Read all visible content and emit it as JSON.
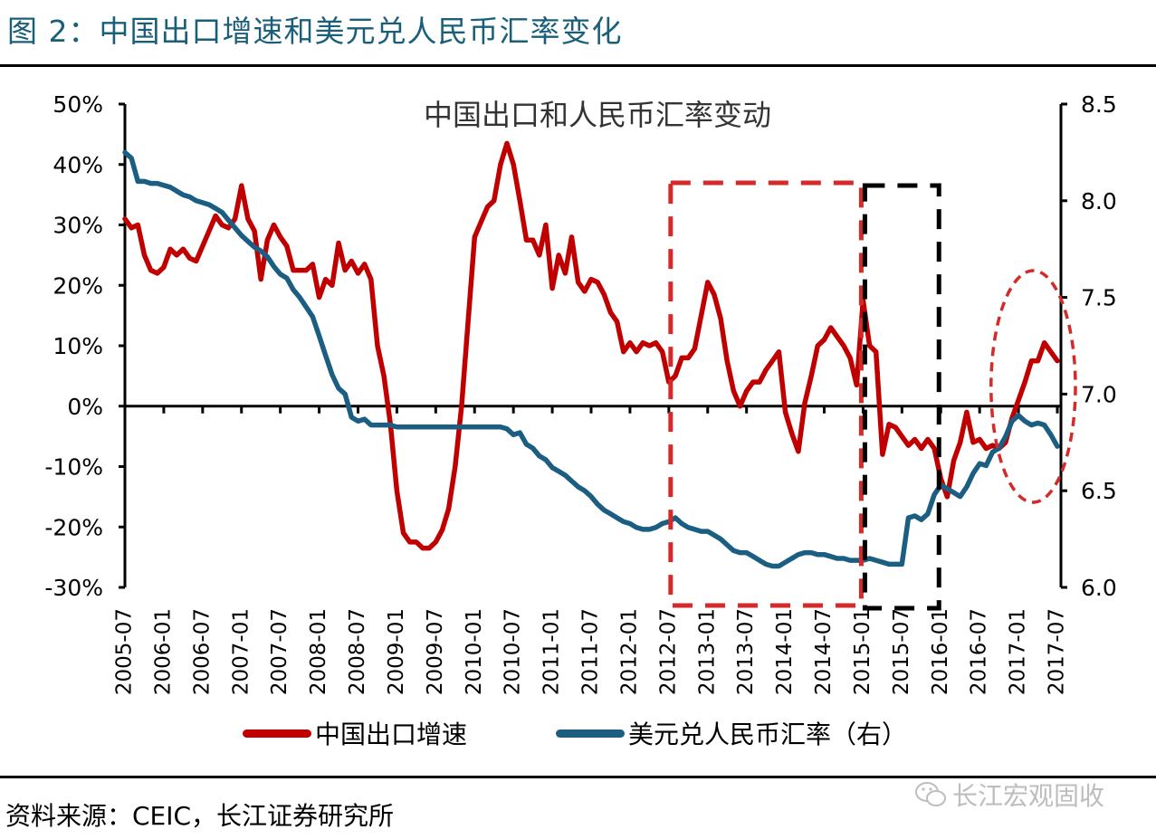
{
  "figure_title": "图 2：中国出口增速和美元兑人民币汇率变化",
  "source": "资料来源：CEIC，长江证券研究所",
  "watermark": "长江宏观固收",
  "watermark_icon": "wechat-icon",
  "colors": {
    "title": "#1a5f7a",
    "export": "#c00000",
    "rate": "#1b5e82",
    "annotation_red": "#d42a2a",
    "annotation_black": "#000000"
  },
  "chart_data": {
    "type": "line",
    "title": "中国出口和人民币汇率变动",
    "xlabel": "",
    "ylabel": "",
    "y_left": {
      "range": [
        -30,
        50
      ],
      "ticks": [
        50,
        40,
        30,
        20,
        10,
        0,
        -10,
        -20,
        -30
      ],
      "tick_labels": [
        "50%",
        "40%",
        "30%",
        "20%",
        "10%",
        "0%",
        "-10%",
        "-20%",
        "-30%"
      ]
    },
    "y_right": {
      "range": [
        6.0,
        8.5
      ],
      "ticks": [
        8.5,
        8.0,
        7.5,
        7.0,
        6.5,
        6.0
      ],
      "tick_labels": [
        "8.5",
        "8.0",
        "7.5",
        "7.0",
        "6.5",
        "6.0"
      ]
    },
    "x_range": [
      "2005-07",
      "2017-07"
    ],
    "x_tick_labels": [
      "2005-07",
      "2006-01",
      "2006-07",
      "2007-01",
      "2007-07",
      "2008-01",
      "2008-07",
      "2009-01",
      "2009-07",
      "2010-01",
      "2010-07",
      "2011-01",
      "2011-07",
      "2012-01",
      "2012-07",
      "2013-01",
      "2013-07",
      "2014-01",
      "2014-07",
      "2015-01",
      "2015-07",
      "2016-01",
      "2016-07",
      "2017-01",
      "2017-07"
    ],
    "grid": false,
    "legend_position": "bottom",
    "series": [
      {
        "name": "中国出口增速",
        "axis": "left",
        "unit": "%",
        "color": "#c00000",
        "x_start": "2005-07",
        "frequency": "monthly",
        "values": [
          31,
          29.5,
          30,
          25,
          22.5,
          22,
          23,
          26,
          25,
          26,
          24.5,
          24,
          26.5,
          29,
          31.5,
          30,
          29.5,
          31,
          36.5,
          31,
          29,
          21,
          27.5,
          30,
          28,
          26.5,
          22.5,
          22.5,
          22.5,
          23.5,
          18,
          21,
          20,
          27,
          22.5,
          24,
          22,
          23.5,
          21,
          10,
          5,
          -3,
          -14,
          -21,
          -22.5,
          -22.5,
          -23.5,
          -23.5,
          -22.5,
          -20.5,
          -17,
          -10,
          0,
          14,
          28,
          30.5,
          33,
          34,
          40,
          43.5,
          40,
          34,
          27.5,
          27.5,
          25,
          30,
          19.5,
          25,
          22,
          28,
          20.5,
          19,
          21,
          20.5,
          18.5,
          15.5,
          14,
          9,
          10.5,
          9,
          10.5,
          10,
          10.5,
          9,
          4,
          5,
          8,
          8,
          9.5,
          15,
          20.5,
          18.5,
          14.5,
          7.5,
          2.5,
          0,
          2.5,
          4,
          4,
          6,
          7.5,
          9,
          -1,
          -4.5,
          -7.5,
          0.5,
          5,
          10,
          11,
          13,
          11.5,
          10,
          8,
          3.5,
          17.5,
          10,
          9,
          -8,
          -3,
          -3.5,
          -5,
          -6.5,
          -5.5,
          -7,
          -5.5,
          -7,
          -12,
          -15,
          -9,
          -6,
          -1,
          -6,
          -5.5,
          -7,
          -6.5,
          -7,
          -6,
          -2,
          1,
          4,
          7.5,
          7.5,
          10.5,
          9,
          7.5
        ]
      },
      {
        "name": "美元兑人民币汇率（右）",
        "axis": "right",
        "unit": "",
        "color": "#1b5e82",
        "x_start": "2005-07",
        "frequency": "monthly",
        "values": [
          8.25,
          8.22,
          8.1,
          8.1,
          8.09,
          8.09,
          8.08,
          8.07,
          8.05,
          8.03,
          8.02,
          8.0,
          7.99,
          7.98,
          7.96,
          7.94,
          7.9,
          7.86,
          7.82,
          7.79,
          7.76,
          7.74,
          7.71,
          7.66,
          7.62,
          7.6,
          7.54,
          7.5,
          7.45,
          7.4,
          7.3,
          7.2,
          7.1,
          7.03,
          7.0,
          6.88,
          6.86,
          6.87,
          6.84,
          6.84,
          6.84,
          6.84,
          6.83,
          6.83,
          6.83,
          6.83,
          6.83,
          6.83,
          6.83,
          6.83,
          6.83,
          6.83,
          6.83,
          6.83,
          6.83,
          6.83,
          6.83,
          6.83,
          6.83,
          6.82,
          6.79,
          6.8,
          6.74,
          6.72,
          6.68,
          6.66,
          6.62,
          6.6,
          6.58,
          6.55,
          6.52,
          6.5,
          6.47,
          6.43,
          6.4,
          6.38,
          6.36,
          6.34,
          6.33,
          6.31,
          6.3,
          6.3,
          6.31,
          6.33,
          6.34,
          6.36,
          6.33,
          6.31,
          6.3,
          6.29,
          6.29,
          6.27,
          6.25,
          6.22,
          6.19,
          6.18,
          6.18,
          6.16,
          6.14,
          6.12,
          6.11,
          6.11,
          6.13,
          6.15,
          6.17,
          6.18,
          6.18,
          6.17,
          6.17,
          6.16,
          6.15,
          6.15,
          6.14,
          6.14,
          6.14,
          6.15,
          6.14,
          6.13,
          6.12,
          6.12,
          6.12,
          6.36,
          6.37,
          6.35,
          6.38,
          6.48,
          6.53,
          6.51,
          6.49,
          6.47,
          6.52,
          6.59,
          6.64,
          6.63,
          6.7,
          6.72,
          6.78,
          6.86,
          6.89,
          6.86,
          6.84,
          6.85,
          6.84,
          6.79,
          6.73
        ]
      }
    ],
    "annotations": [
      {
        "type": "dashed-rectangle",
        "color": "#d42a2a",
        "x_from": "2012-07",
        "x_to": "2015-01"
      },
      {
        "type": "dashed-rectangle",
        "color": "#000000",
        "x_from": "2015-01",
        "x_to": "2016-01"
      },
      {
        "type": "dashed-ellipse",
        "color": "#d42a2a",
        "x_from": "2016-11",
        "x_to": "2017-07"
      }
    ]
  }
}
